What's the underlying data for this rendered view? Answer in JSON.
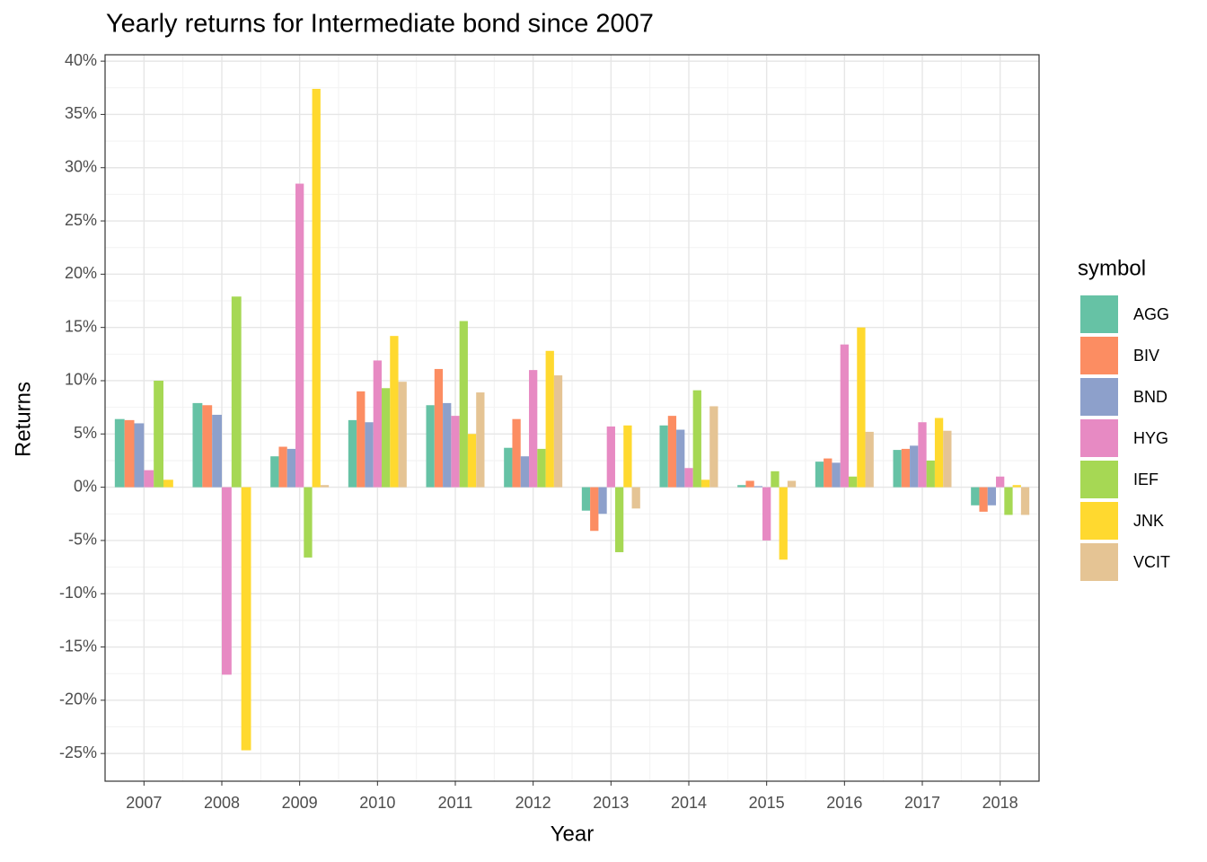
{
  "chart_data": {
    "type": "bar",
    "title": "Yearly returns for Intermediate bond since 2007",
    "x_label": "Year",
    "y_label": "Returns",
    "legend_title": "symbol",
    "categories": [
      "2007",
      "2008",
      "2009",
      "2010",
      "2011",
      "2012",
      "2013",
      "2014",
      "2015",
      "2016",
      "2017",
      "2018"
    ],
    "series": [
      {
        "name": "AGG",
        "color": "#66c2a5",
        "values": [
          6.4,
          7.9,
          2.9,
          6.3,
          7.7,
          3.7,
          -2.2,
          5.8,
          0.2,
          2.4,
          3.5,
          -1.7
        ]
      },
      {
        "name": "BIV",
        "color": "#fc8d62",
        "values": [
          6.3,
          7.7,
          3.8,
          9.0,
          11.1,
          6.4,
          -4.1,
          6.7,
          0.6,
          2.7,
          3.6,
          -2.3
        ]
      },
      {
        "name": "BND",
        "color": "#8da0cb",
        "values": [
          6.0,
          6.8,
          3.6,
          6.1,
          7.9,
          2.9,
          -2.5,
          5.4,
          0.1,
          2.3,
          3.9,
          -1.7
        ]
      },
      {
        "name": "HYG",
        "color": "#e78ac3",
        "values": [
          1.6,
          -17.6,
          28.5,
          11.9,
          6.7,
          11.0,
          5.7,
          1.8,
          -5.0,
          13.4,
          6.1,
          1.0
        ]
      },
      {
        "name": "IEF",
        "color": "#a6d854",
        "values": [
          10.0,
          17.9,
          -6.6,
          9.3,
          15.6,
          3.6,
          -6.1,
          9.1,
          1.5,
          1.0,
          2.5,
          -2.6
        ]
      },
      {
        "name": "JNK",
        "color": "#ffd92f",
        "values": [
          0.7,
          -24.7,
          37.4,
          14.2,
          5.0,
          12.8,
          5.8,
          0.7,
          -6.8,
          15.0,
          6.5,
          0.2
        ]
      },
      {
        "name": "VCIT",
        "color": "#e5c494",
        "values": [
          null,
          null,
          0.2,
          9.9,
          8.9,
          10.5,
          -2.0,
          7.6,
          0.6,
          5.2,
          5.3,
          -2.6
        ]
      }
    ],
    "ylim": [
      -27.6,
      40.6
    ],
    "yticks": [
      {
        "value": -25,
        "label": "-25%"
      },
      {
        "value": -20,
        "label": "-20%"
      },
      {
        "value": -15,
        "label": "-15%"
      },
      {
        "value": -10,
        "label": "-10%"
      },
      {
        "value": -5,
        "label": "-5%"
      },
      {
        "value": 0,
        "label": "0%"
      },
      {
        "value": 5,
        "label": "5%"
      },
      {
        "value": 10,
        "label": "10%"
      },
      {
        "value": 15,
        "label": "15%"
      },
      {
        "value": 20,
        "label": "20%"
      },
      {
        "value": 25,
        "label": "25%"
      },
      {
        "value": 30,
        "label": "30%"
      },
      {
        "value": 35,
        "label": "35%"
      },
      {
        "value": 40,
        "label": "40%"
      }
    ],
    "grid": true,
    "legend": "right"
  }
}
